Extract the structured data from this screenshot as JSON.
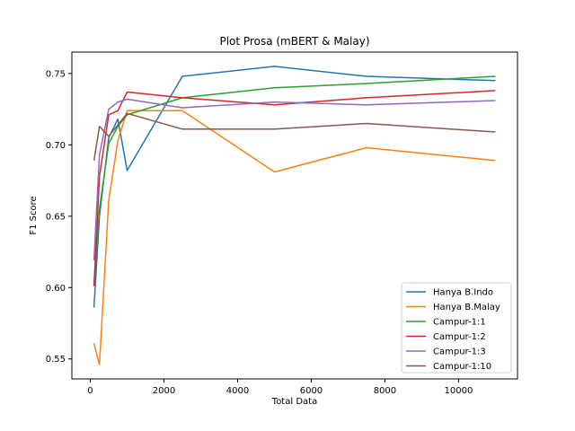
{
  "chart_data": {
    "type": "line",
    "title": "Plot Prosa (mBERT & Malay)",
    "xlabel": "Total Data",
    "ylabel": "F1 Score",
    "xlim": [
      -500,
      11600
    ],
    "ylim": [
      0.536,
      0.765
    ],
    "xticks": [
      0,
      2000,
      4000,
      6000,
      8000,
      10000
    ],
    "yticks": [
      0.55,
      0.6,
      0.65,
      0.7,
      0.75
    ],
    "xtick_labels": [
      "0",
      "2000",
      "4000",
      "6000",
      "8000",
      "10000"
    ],
    "ytick_labels": [
      "0.55",
      "0.60",
      "0.65",
      "0.70",
      "0.75"
    ],
    "legend_position": "lower-right",
    "grid": false,
    "series": [
      {
        "name": "Hanya B.Indo",
        "color": "#1f77b4",
        "x": [
          100,
          250,
          500,
          750,
          1000,
          2500,
          5000,
          7500,
          11000
        ],
        "y": [
          0.586,
          0.65,
          0.705,
          0.718,
          0.682,
          0.748,
          0.755,
          0.748,
          0.745
        ]
      },
      {
        "name": "Hanya B.Malay",
        "color": "#ff7f0e",
        "x": [
          100,
          250,
          500,
          750,
          1000,
          2500,
          5000,
          7500,
          11000
        ],
        "y": [
          0.561,
          0.546,
          0.661,
          0.703,
          0.724,
          0.724,
          0.681,
          0.698,
          0.689
        ]
      },
      {
        "name": "Campur-1:1",
        "color": "#2ca02c",
        "x": [
          100,
          250,
          500,
          750,
          1000,
          2500,
          5000,
          7500,
          11000
        ],
        "y": [
          0.602,
          0.655,
          0.701,
          0.713,
          0.721,
          0.733,
          0.74,
          0.743,
          0.748
        ]
      },
      {
        "name": "Campur-1:2",
        "color": "#d62728",
        "x": [
          100,
          250,
          500,
          750,
          1000,
          2500,
          5000,
          7500,
          11000
        ],
        "y": [
          0.601,
          0.678,
          0.721,
          0.724,
          0.737,
          0.733,
          0.728,
          0.733,
          0.738
        ]
      },
      {
        "name": "Campur-1:3",
        "color": "#9467bd",
        "x": [
          100,
          250,
          500,
          750,
          1000,
          2500,
          5000,
          7500,
          11000
        ],
        "y": [
          0.619,
          0.693,
          0.725,
          0.73,
          0.732,
          0.726,
          0.73,
          0.728,
          0.731
        ]
      },
      {
        "name": "Campur-1:10",
        "color": "#8c564b",
        "x": [
          100,
          250,
          500,
          750,
          1000,
          2500,
          5000,
          7500,
          11000
        ],
        "y": [
          0.689,
          0.713,
          0.706,
          0.714,
          0.722,
          0.711,
          0.711,
          0.715,
          0.709
        ]
      }
    ]
  }
}
